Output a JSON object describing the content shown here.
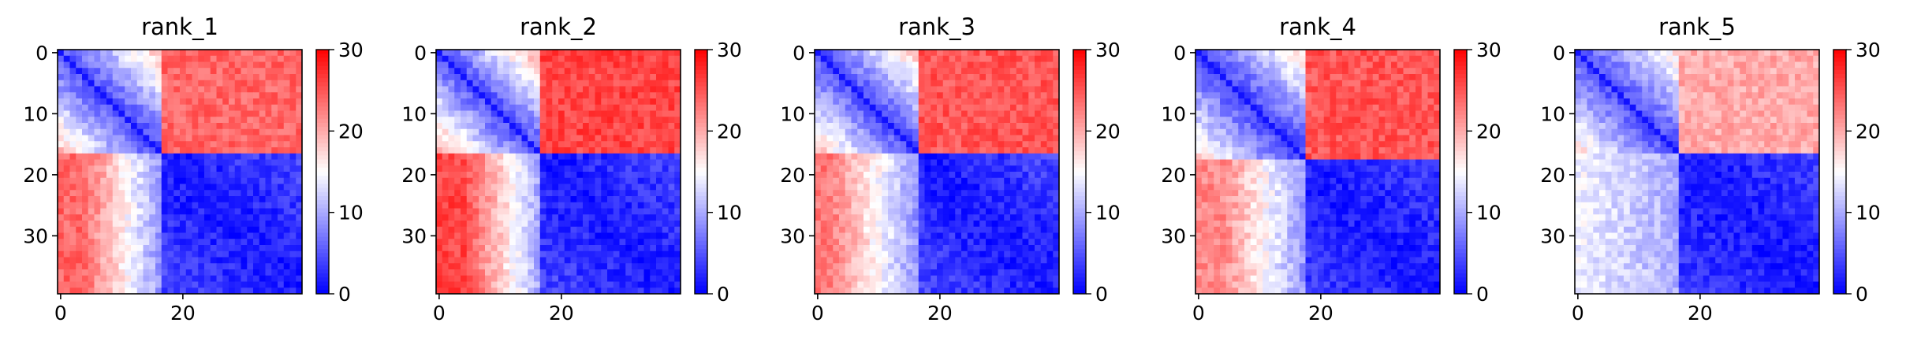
{
  "chart_data": [
    {
      "type": "heatmap",
      "title": "rank_1",
      "grid_size": 40,
      "colormap": "bwr",
      "colors": {
        "low": "#0000ff",
        "mid": "#ffffff",
        "high": "#ff0000"
      },
      "color_range": [
        0,
        30
      ],
      "colorbar_ticks": [
        0,
        10,
        20,
        30
      ],
      "x_ticks": [
        0,
        20
      ],
      "y_ticks": [
        0,
        10,
        20,
        30
      ],
      "structure": {
        "diagonal_value": 1,
        "domain_boundary": 17,
        "within_domain_A": {
          "base": 4,
          "slope": 0.9
        },
        "within_domain_B": {
          "base": 1.5,
          "slope": 0.12,
          "max": 6
        },
        "between_domains": {
          "base": 8,
          "slope": 1.2,
          "max": 24
        },
        "high_region_value": 24
      },
      "grid": false,
      "legend": "colorbar-right"
    },
    {
      "type": "heatmap",
      "title": "rank_2",
      "grid_size": 40,
      "colormap": "bwr",
      "colors": {
        "low": "#0000ff",
        "mid": "#ffffff",
        "high": "#ff0000"
      },
      "color_range": [
        0,
        30
      ],
      "colorbar_ticks": [
        0,
        10,
        20,
        30
      ],
      "x_ticks": [
        0,
        20
      ],
      "y_ticks": [
        0,
        10,
        20,
        30
      ],
      "structure": {
        "diagonal_value": 1,
        "domain_boundary": 17,
        "within_domain_A": {
          "base": 4,
          "slope": 1.0
        },
        "within_domain_B": {
          "base": 1.5,
          "slope": 0.12,
          "max": 6
        },
        "between_domains": {
          "base": 9,
          "slope": 1.3,
          "max": 26
        },
        "high_region_value": 26
      },
      "grid": false,
      "legend": "colorbar-right"
    },
    {
      "type": "heatmap",
      "title": "rank_3",
      "grid_size": 40,
      "colormap": "bwr",
      "colors": {
        "low": "#0000ff",
        "mid": "#ffffff",
        "high": "#ff0000"
      },
      "color_range": [
        0,
        30
      ],
      "colorbar_ticks": [
        0,
        10,
        20,
        30
      ],
      "x_ticks": [
        0,
        20
      ],
      "y_ticks": [
        0,
        10,
        20,
        30
      ],
      "structure": {
        "diagonal_value": 1,
        "domain_boundary": 17,
        "within_domain_A": {
          "base": 4,
          "slope": 0.9
        },
        "within_domain_B": {
          "base": 1.5,
          "slope": 0.12,
          "max": 6
        },
        "between_domains": {
          "base": 8,
          "slope": 1.0,
          "max": 23
        },
        "high_region_value": 25
      },
      "grid": false,
      "legend": "colorbar-right"
    },
    {
      "type": "heatmap",
      "title": "rank_4",
      "grid_size": 40,
      "colormap": "bwr",
      "colors": {
        "low": "#0000ff",
        "mid": "#ffffff",
        "high": "#ff0000"
      },
      "color_range": [
        0,
        30
      ],
      "colorbar_ticks": [
        0,
        10,
        20,
        30
      ],
      "x_ticks": [
        0,
        20
      ],
      "y_ticks": [
        0,
        10,
        20,
        30
      ],
      "structure": {
        "diagonal_value": 1,
        "domain_boundary": 18,
        "within_domain_A": {
          "base": 3.5,
          "slope": 0.8
        },
        "within_domain_B": {
          "base": 1.5,
          "slope": 0.1,
          "max": 5
        },
        "between_domains": {
          "base": 8,
          "slope": 1.0,
          "max": 22
        },
        "high_region_value": 25
      },
      "grid": false,
      "legend": "colorbar-right"
    },
    {
      "type": "heatmap",
      "title": "rank_5",
      "grid_size": 40,
      "colormap": "bwr",
      "colors": {
        "low": "#0000ff",
        "mid": "#ffffff",
        "high": "#ff0000"
      },
      "color_range": [
        0,
        30
      ],
      "colorbar_ticks": [
        0,
        10,
        20,
        30
      ],
      "x_ticks": [
        0,
        20
      ],
      "y_ticks": [
        0,
        10,
        20,
        30
      ],
      "structure": {
        "diagonal_value": 1,
        "domain_boundary": 17,
        "within_domain_A": {
          "base": 4,
          "slope": 0.8
        },
        "within_domain_B": {
          "base": 1.5,
          "slope": 0.1,
          "max": 5
        },
        "between_domains": {
          "base": 10,
          "slope": 0.25,
          "max": 16
        },
        "high_region_value": 20
      },
      "grid": false,
      "legend": "colorbar-right"
    }
  ]
}
